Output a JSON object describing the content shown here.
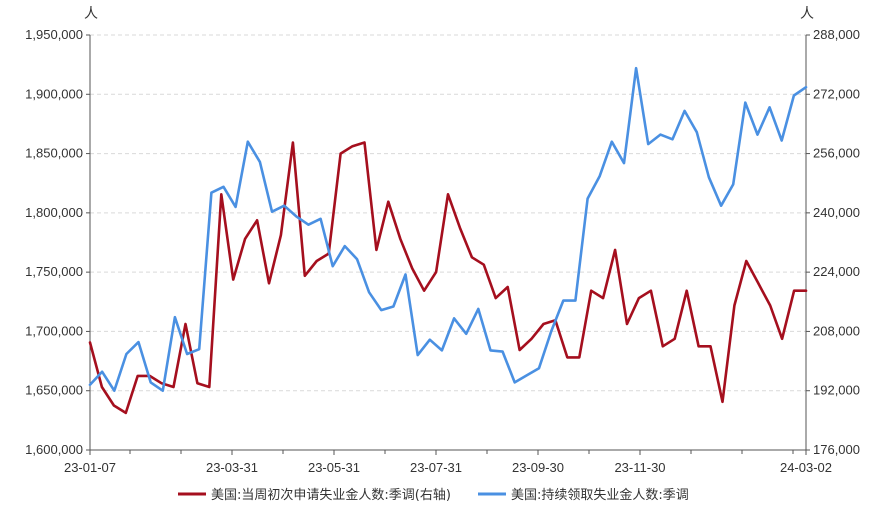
{
  "chart_data": {
    "type": "line",
    "left_unit": "人",
    "right_unit": "人",
    "y_left": {
      "min": 1600000,
      "max": 1950000,
      "ticks": [
        "1,600,000",
        "1,650,000",
        "1,700,000",
        "1,750,000",
        "1,800,000",
        "1,850,000",
        "1,900,000",
        "1,950,000"
      ]
    },
    "y_right": {
      "min": 176000,
      "max": 288000,
      "ticks": [
        "176,000",
        "192,000",
        "208,000",
        "224,000",
        "240,000",
        "256,000",
        "272,000",
        "288,000"
      ]
    },
    "x_ticks": [
      "23-01-07",
      "23-03-31",
      "23-05-31",
      "23-07-31",
      "23-09-30",
      "23-11-30",
      "24-03-02"
    ],
    "grid": "horizontal dashed",
    "legend_position": "bottom",
    "series": [
      {
        "name": "美国:当周初次申请失业金人数:季调(右轴)",
        "axis": "right",
        "color": "#a50f1e",
        "values": [
          205000,
          193000,
          188000,
          186000,
          196000,
          196000,
          194000,
          193000,
          210000,
          194000,
          193000,
          245000,
          222000,
          233000,
          238000,
          221000,
          234000,
          259000,
          223000,
          227000,
          229000,
          256000,
          258000,
          259000,
          230000,
          243000,
          233000,
          225000,
          219000,
          224000,
          245000,
          236000,
          228000,
          226000,
          217000,
          220000,
          203000,
          206000,
          210000,
          211000,
          201000,
          201000,
          219000,
          217000,
          230000,
          210000,
          217000,
          219000,
          204000,
          206000,
          219000,
          204000,
          204000,
          189000,
          215000,
          227000,
          221000,
          215000,
          206000,
          219000,
          219000
        ]
      },
      {
        "name": "美国:持续领取失业金人数:季调",
        "axis": "left",
        "color": "#4a90e2",
        "values": [
          1655000,
          1666000,
          1650000,
          1681000,
          1691000,
          1657000,
          1650000,
          1712000,
          1681000,
          1685000,
          1817000,
          1822000,
          1805000,
          1860000,
          1843000,
          1801000,
          1806000,
          1797000,
          1790000,
          1795000,
          1755000,
          1772000,
          1761000,
          1733000,
          1718000,
          1721000,
          1748000,
          1680000,
          1693000,
          1684000,
          1711000,
          1698000,
          1719000,
          1684000,
          1683000,
          1657000,
          1663000,
          1669000,
          1700000,
          1726000,
          1726000,
          1812000,
          1831000,
          1860000,
          1842000,
          1922000,
          1858000,
          1866000,
          1862000,
          1886000,
          1868000,
          1830000,
          1806000,
          1824000,
          1893000,
          1866000,
          1889000,
          1861000,
          1899000,
          1906000
        ]
      }
    ]
  }
}
